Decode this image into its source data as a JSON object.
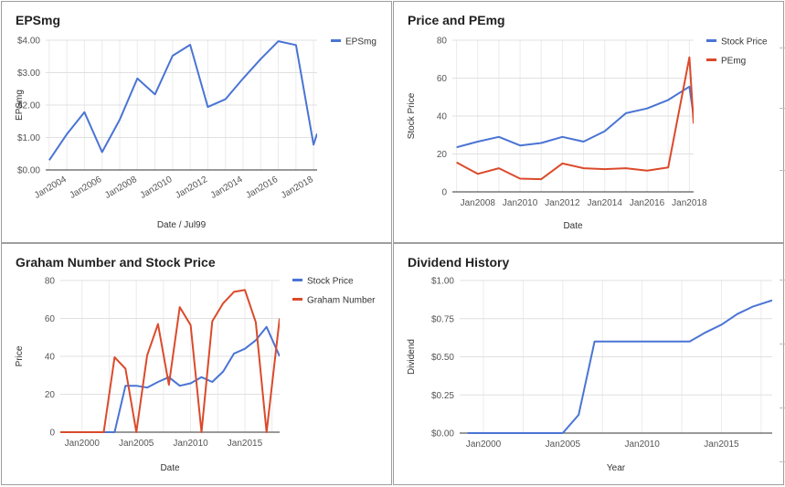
{
  "chart_data": [
    {
      "type": "line",
      "title": "EPSmg",
      "xlabel": "Date / Jul99",
      "ylabel": "EPSmg",
      "x_ticks": [
        "Jan2004",
        "Jan2006",
        "Jan2008",
        "Jan2010",
        "Jan2012",
        "Jan2014",
        "Jan2016",
        "Jan2018"
      ],
      "x_tick_positions": [
        2004,
        2006,
        2008,
        2010,
        2012,
        2014,
        2016,
        2018
      ],
      "y_ticks": [
        "$0.00",
        "$1.00",
        "$2.00",
        "$3.00",
        "$4.00"
      ],
      "xlim": [
        2002.8,
        2018.2
      ],
      "ylim": [
        0,
        4
      ],
      "legend_position": "right",
      "series": [
        {
          "name": "EPSmg",
          "color": "#4a74d4",
          "x": [
            2003,
            2004,
            2005,
            2006,
            2007,
            2008,
            2009,
            2010,
            2011,
            2012,
            2013,
            2014,
            2015,
            2016,
            2017,
            2018,
            2018.2
          ],
          "y": [
            0.3,
            1.1,
            1.78,
            0.55,
            1.55,
            2.82,
            2.33,
            3.52,
            3.86,
            1.94,
            2.18,
            2.82,
            3.42,
            3.97,
            3.85,
            0.78,
            1.12
          ]
        }
      ]
    },
    {
      "type": "line",
      "title": "Price and PEmg",
      "xlabel": "Date",
      "ylabel": "Stock Price",
      "x_ticks": [
        "Jan2008",
        "Jan2010",
        "Jan2012",
        "Jan2014",
        "Jan2016",
        "Jan2018"
      ],
      "x_tick_positions": [
        2008,
        2010,
        2012,
        2014,
        2016,
        2018
      ],
      "y_ticks": [
        "0",
        "20",
        "40",
        "60",
        "80"
      ],
      "xlim": [
        2006.8,
        2018.2
      ],
      "ylim": [
        0,
        80
      ],
      "legend_position": "right",
      "series": [
        {
          "name": "Stock Price",
          "color": "#4a74d4",
          "x": [
            2007,
            2008,
            2009,
            2010,
            2011,
            2012,
            2013,
            2014,
            2015,
            2016,
            2017,
            2018,
            2018.2
          ],
          "y": [
            23.5,
            26.5,
            29,
            24.5,
            25.8,
            29,
            26.5,
            32,
            41.5,
            44,
            48.5,
            55.5,
            40
          ]
        },
        {
          "name": "PEmg",
          "color": "#db4a2b",
          "x": [
            2007,
            2008,
            2009,
            2010,
            2011,
            2012,
            2013,
            2014,
            2015,
            2016,
            2017,
            2018,
            2018.2
          ],
          "y": [
            15.5,
            9.5,
            12.5,
            7,
            6.7,
            15,
            12.5,
            12,
            12.5,
            11.2,
            12.9,
            71,
            36
          ]
        }
      ]
    },
    {
      "type": "line",
      "title": "Graham Number and Stock Price",
      "xlabel": "Date",
      "ylabel": "Price",
      "x_ticks": [
        "Jan2000",
        "Jan2005",
        "Jan2010",
        "Jan2015"
      ],
      "x_tick_positions": [
        2000,
        2005,
        2010,
        2015
      ],
      "y_ticks": [
        "0",
        "20",
        "40",
        "60",
        "80"
      ],
      "xlim": [
        1998,
        2018.2
      ],
      "ylim": [
        0,
        80
      ],
      "legend_position": "right",
      "series": [
        {
          "name": "Stock Price",
          "color": "#4a74d4",
          "x": [
            1998,
            2002,
            2003,
            2004,
            2005,
            2006,
            2007,
            2008,
            2009,
            2010,
            2011,
            2012,
            2013,
            2014,
            2015,
            2016,
            2017,
            2018.2
          ],
          "y": [
            0,
            0,
            0,
            24.5,
            24.5,
            23.5,
            26.5,
            29,
            24.5,
            25.8,
            29,
            26.5,
            32,
            41.5,
            44,
            48.5,
            55.5,
            40
          ]
        },
        {
          "name": "Graham Number",
          "color": "#db4a2b",
          "x": [
            1998,
            2002,
            2003,
            2004,
            2005,
            2006,
            2007,
            2008,
            2009,
            2010,
            2011,
            2012,
            2013,
            2014,
            2015,
            2016,
            2017,
            2018.2
          ],
          "y": [
            0,
            0,
            39.5,
            33.5,
            0,
            40.5,
            57,
            25,
            66,
            56.5,
            0,
            58.5,
            68,
            74,
            75,
            58,
            0,
            60
          ]
        }
      ]
    },
    {
      "type": "line",
      "title": "Dividend History",
      "xlabel": "Year",
      "ylabel": "Dividend",
      "x_ticks": [
        "Jan2000",
        "Jan2005",
        "Jan2010",
        "Jan2015"
      ],
      "x_tick_positions": [
        2000,
        2005,
        2010,
        2015
      ],
      "y_ticks": [
        "$0.00",
        "$0.25",
        "$0.50",
        "$0.75",
        "$1.00"
      ],
      "xlim": [
        1998.5,
        2018.2
      ],
      "ylim": [
        0,
        1
      ],
      "series": [
        {
          "name": "",
          "color": "#4a74d4",
          "x": [
            1999,
            2000,
            2001,
            2002,
            2003,
            2004,
            2005,
            2006,
            2007,
            2008,
            2009,
            2010,
            2011,
            2012,
            2013,
            2014,
            2015,
            2016,
            2017,
            2018.2
          ],
          "y": [
            0,
            0,
            0,
            0,
            0,
            0,
            0,
            0.12,
            0.6,
            0.6,
            0.6,
            0.6,
            0.6,
            0.6,
            0.6,
            0.66,
            0.71,
            0.78,
            0.83,
            0.87
          ]
        }
      ]
    }
  ]
}
